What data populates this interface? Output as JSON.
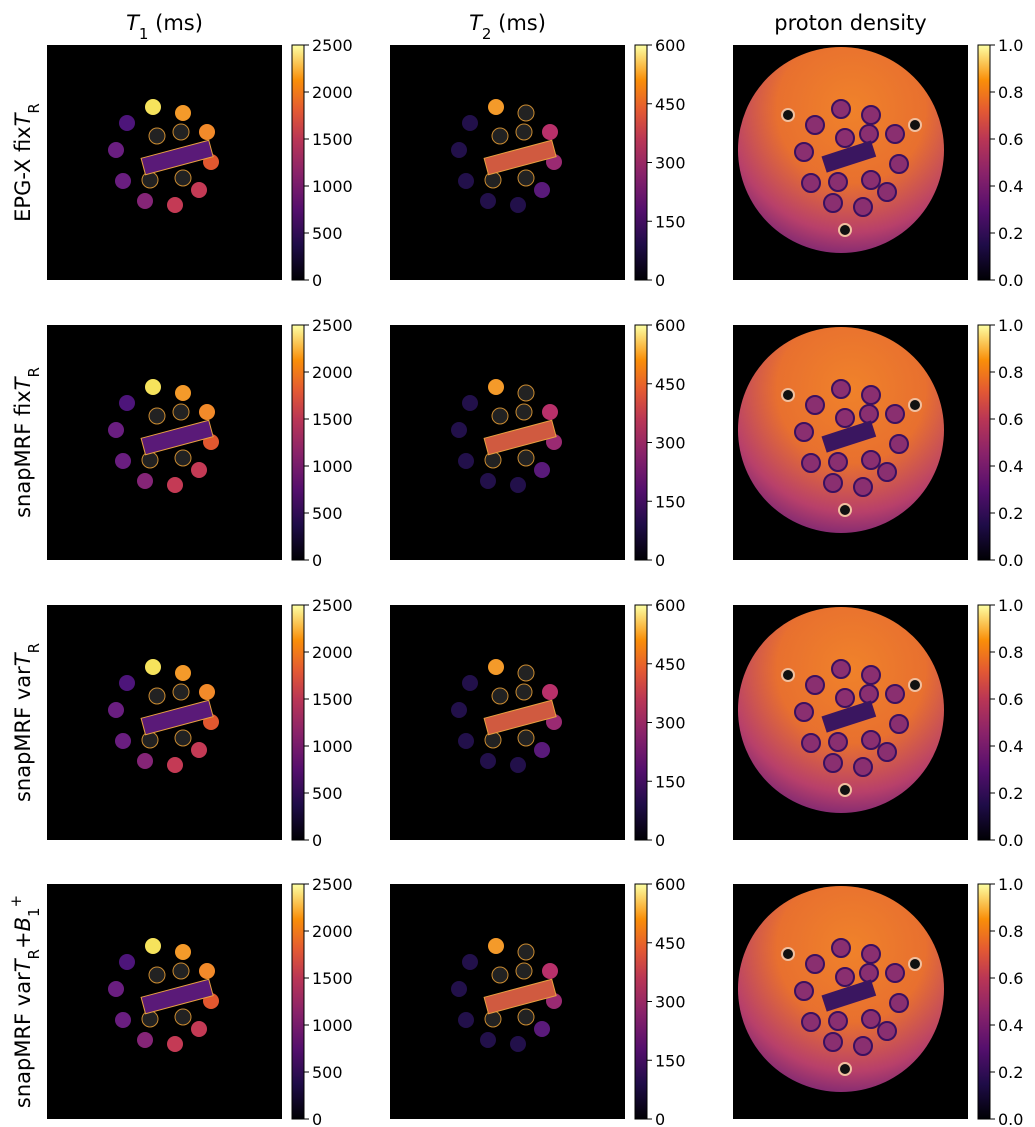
{
  "columns": [
    {
      "title": [
        {
          "t": "T",
          "i": true
        },
        {
          "t": "1",
          "sub": true
        },
        {
          "t": " (ms)"
        }
      ],
      "colorbar": {
        "ylim": [
          0,
          2500
        ],
        "yticks": [
          0,
          500,
          1000,
          1500,
          2000,
          2500
        ],
        "colormap": "inferno"
      }
    },
    {
      "title": [
        {
          "t": "T",
          "i": true
        },
        {
          "t": "2",
          "sub": true
        },
        {
          "t": " (ms)"
        }
      ],
      "colorbar": {
        "ylim": [
          0,
          600
        ],
        "yticks": [
          0,
          150,
          300,
          450,
          600
        ],
        "colormap": "inferno"
      }
    },
    {
      "title": [
        {
          "t": "proton density"
        }
      ],
      "colorbar": {
        "ylim": [
          0,
          1
        ],
        "yticks": [
          {
            "value": 0,
            "label": "0.0"
          },
          0.2,
          0.4,
          0.6,
          0.8,
          {
            "value": 1,
            "label": "1.0"
          }
        ],
        "colormap": "inferno"
      }
    }
  ],
  "rows": [
    {
      "label": [
        {
          "t": "EPG-X fix"
        },
        {
          "t": "T",
          "i": true
        },
        {
          "t": "R",
          "sub": true
        }
      ]
    },
    {
      "label": [
        {
          "t": "snapMRF fix"
        },
        {
          "t": "T",
          "i": true
        },
        {
          "t": "R",
          "sub": true
        }
      ]
    },
    {
      "label": [
        {
          "t": "snapMRF var"
        },
        {
          "t": "T",
          "i": true
        },
        {
          "t": "R",
          "sub": true
        }
      ]
    },
    {
      "label": [
        {
          "t": "snapMRF var"
        },
        {
          "t": "T",
          "i": true
        },
        {
          "t": "R",
          "sub": true
        },
        {
          "t": "+"
        },
        {
          "t": "B",
          "i": true
        },
        {
          "t": "1",
          "sub": true
        },
        {
          "t": "+",
          "sup": true
        }
      ]
    }
  ]
}
